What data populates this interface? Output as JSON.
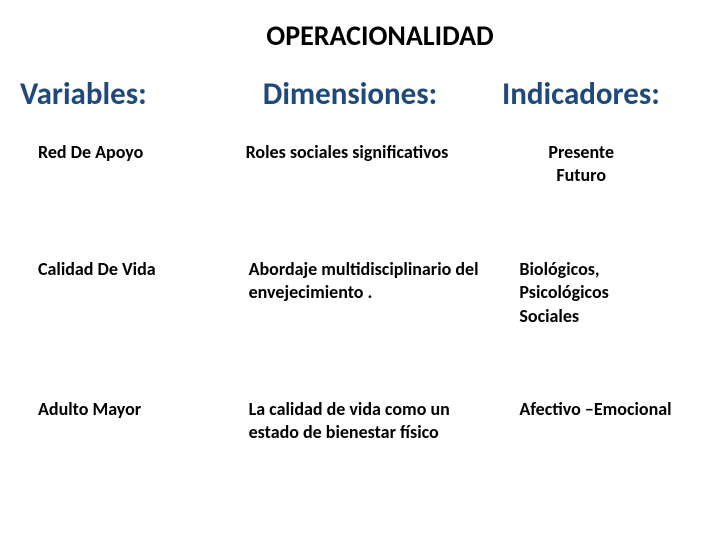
{
  "title": {
    "text": "OPERACIONALIDAD",
    "fontsize": 28,
    "color": "#000000"
  },
  "headers": {
    "variables": {
      "text": "Variables:",
      "fontsize": 31,
      "color": "#1f497d"
    },
    "dimensiones": {
      "text": "Dimensiones:",
      "fontsize": 31,
      "color": "#1f497d"
    },
    "indicadores": {
      "text": "Indicadores:",
      "fontsize": 31,
      "color": "#1f497d"
    }
  },
  "rows": [
    {
      "variable": {
        "text": "Red De Apoyo",
        "fontsize": 18
      },
      "dimension": {
        "text": "Roles sociales significativos",
        "fontsize": 18
      },
      "indicador": {
        "lines": [
          "Presente",
          "Futuro"
        ],
        "fontsize": 18,
        "align": "center"
      }
    },
    {
      "variable": {
        "text": "Calidad De Vida",
        "fontsize": 18
      },
      "dimension": {
        "text": "Abordaje multidisciplinario del envejecimiento .",
        "fontsize": 18
      },
      "indicador": {
        "lines": [
          "Biológicos,",
          "Psicológicos",
          "Sociales"
        ],
        "fontsize": 18,
        "align": "left"
      }
    },
    {
      "variable": {
        "text": "Adulto Mayor",
        "fontsize": 18
      },
      "dimension": {
        "text": "La calidad de vida como un estado de bienestar físico",
        "fontsize": 18
      },
      "indicador": {
        "lines": [
          "Afectivo –Emocional"
        ],
        "fontsize": 18,
        "align": "left"
      }
    }
  ],
  "colors": {
    "heading": "#1f497d",
    "body": "#000000",
    "background": "#ffffff"
  }
}
